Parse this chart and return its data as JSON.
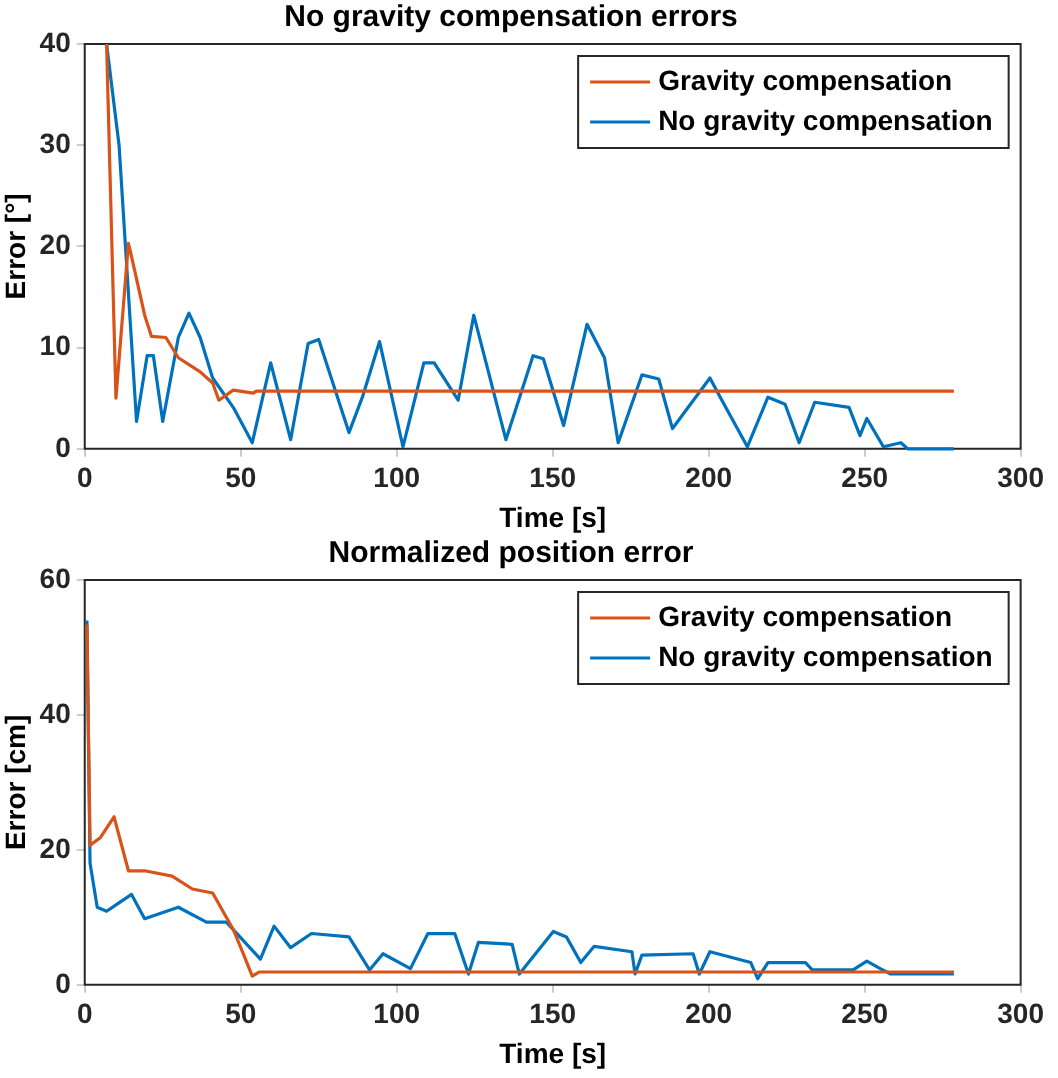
{
  "chart_data": [
    {
      "type": "line",
      "title": "No gravity compensation errors",
      "xlabel": "Time [s]",
      "ylabel": "Error [°]",
      "xlim": [
        0,
        300
      ],
      "xticks": [
        0,
        50,
        100,
        150,
        200,
        250,
        300
      ],
      "ylim": [
        0,
        40
      ],
      "yticks": [
        0,
        10,
        20,
        30,
        40
      ],
      "grid": false,
      "legend": "top right",
      "series": [
        {
          "name": "Gravity compensation",
          "color": "#d95319",
          "x": [
            7,
            10,
            14,
            15,
            19.2,
            21.4,
            26,
            30,
            37,
            41,
            43,
            47.6,
            54,
            55,
            278.6
          ],
          "values": [
            40,
            5,
            20.3,
            19,
            13.2,
            11.1,
            11,
            9,
            7.6,
            6.5,
            4.8,
            5.8,
            5.5,
            5.7,
            5.7
          ]
        },
        {
          "name": "No gravity compensation",
          "color": "#0072bd",
          "x": [
            7,
            11,
            16.6,
            20,
            22,
            25,
            30,
            33.4,
            37,
            41,
            47.6,
            53.7,
            59.6,
            66,
            71.6,
            75,
            84.7,
            89,
            94.5,
            102,
            108.7,
            112,
            119.7,
            124.7,
            135,
            143.7,
            147,
            153.5,
            161,
            166.6,
            171,
            178.6,
            184,
            188.4,
            200.4,
            203.7,
            212.4,
            219,
            224.5,
            229,
            234,
            245,
            248.5,
            250.7,
            256,
            261.6,
            263.8,
            278.6
          ],
          "values": [
            40,
            30,
            2.7,
            9.2,
            9.2,
            2.7,
            11,
            13.4,
            11,
            7,
            4.1,
            0.6,
            8.5,
            0.9,
            10.4,
            10.8,
            1.6,
            5.1,
            10.6,
            0.2,
            8.5,
            8.5,
            4.8,
            13.2,
            0.9,
            9.2,
            8.9,
            2.3,
            12.3,
            9,
            0.6,
            7.3,
            6.9,
            2,
            7,
            5.1,
            0.2,
            5.1,
            4.4,
            0.6,
            4.6,
            4.1,
            1.3,
            3,
            0.2,
            0.6,
            0,
            0
          ]
        }
      ]
    },
    {
      "type": "line",
      "title": "Normalized position error",
      "xlabel": "Time [s]",
      "ylabel": "Error [cm]",
      "xlim": [
        0,
        300
      ],
      "xticks": [
        0,
        50,
        100,
        150,
        200,
        250,
        300
      ],
      "ylim": [
        0,
        60
      ],
      "yticks": [
        0,
        20,
        40,
        60
      ],
      "grid": false,
      "legend": "top right",
      "series": [
        {
          "name": "Gravity compensation",
          "color": "#d95319",
          "x": [
            0.7,
            1.7,
            5,
            9.4,
            14,
            19.2,
            28,
            34.5,
            41,
            44.3,
            47.6,
            51,
            53.7,
            56,
            278.6
          ],
          "values": [
            53.4,
            20.7,
            21.8,
            24.9,
            16.9,
            16.9,
            16.1,
            14.2,
            13.6,
            10.9,
            8.2,
            4.4,
            1.3,
            1.9,
            1.9
          ]
        },
        {
          "name": "No gravity compensation",
          "color": "#0072bd",
          "x": [
            0.7,
            1.7,
            4,
            7,
            10.5,
            15,
            19.2,
            30,
            39,
            45.4,
            56.3,
            60.7,
            66,
            72.7,
            84.7,
            91.3,
            95.6,
            104.4,
            110,
            118.6,
            123,
            126.2,
            137,
            139.3,
            150.2,
            154.4,
            159,
            163.3,
            175.4,
            176.4,
            178.6,
            195,
            197,
            200.4,
            213.5,
            215.7,
            219,
            231,
            233.2,
            246.3,
            250.7,
            255,
            258.3,
            278.6
          ],
          "values": [
            54,
            18,
            11.5,
            10.9,
            12,
            13.4,
            9.8,
            11.5,
            9.3,
            9.3,
            3.8,
            8.7,
            5.5,
            7.6,
            7.1,
            2.2,
            4.6,
            2.4,
            7.6,
            7.6,
            1.6,
            6.3,
            6,
            1.6,
            7.9,
            7.1,
            3.3,
            5.7,
            4.9,
            1.6,
            4.4,
            4.6,
            1.6,
            4.9,
            3.3,
            0.9,
            3.3,
            3.3,
            2.2,
            2.2,
            3.5,
            2.4,
            1.6,
            1.6
          ]
        }
      ]
    }
  ]
}
